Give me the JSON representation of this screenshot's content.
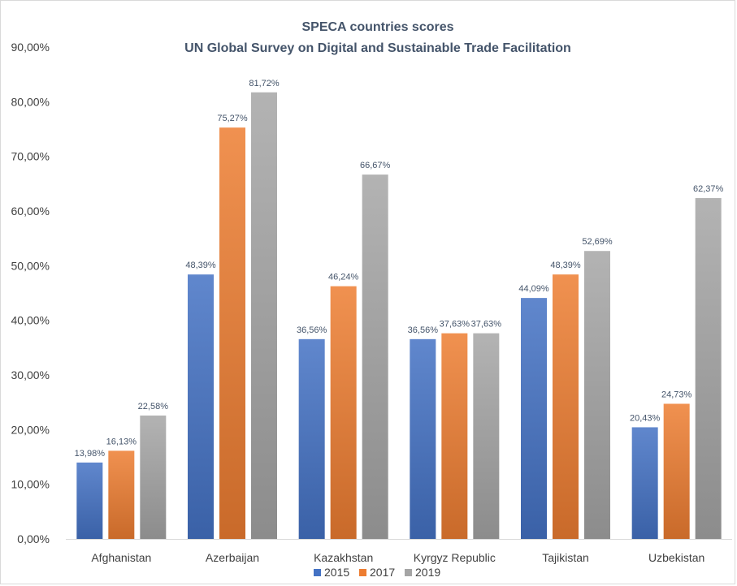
{
  "chart_data": {
    "type": "bar",
    "title": "SPECA countries scores",
    "subtitle": "UN Global Survey on Digital and Sustainable Trade Facilitation",
    "xlabel": "",
    "ylabel": "",
    "ylim": [
      0,
      90
    ],
    "yticks": [
      "0,00%",
      "10,00%",
      "20,00%",
      "30,00%",
      "40,00%",
      "50,00%",
      "60,00%",
      "70,00%",
      "80,00%",
      "90,00%"
    ],
    "grid": false,
    "legend_position": "bottom",
    "categories": [
      "Afghanistan",
      "Azerbaijan",
      "Kazakhstan",
      "Kyrgyz Republic",
      "Tajikistan",
      "Uzbekistan"
    ],
    "series": [
      {
        "name": "2015",
        "color": "#4472c4",
        "values": [
          13.98,
          48.39,
          36.56,
          36.56,
          44.09,
          20.43
        ],
        "labels": [
          "13,98%",
          "48,39%",
          "36,56%",
          "36,56%",
          "44,09%",
          "20,43%"
        ]
      },
      {
        "name": "2017",
        "color": "#ed7d31",
        "values": [
          16.13,
          75.27,
          46.24,
          37.63,
          48.39,
          24.73
        ],
        "labels": [
          "16,13%",
          "75,27%",
          "46,24%",
          "37,63%",
          "48,39%",
          "24,73%"
        ]
      },
      {
        "name": "2019",
        "color": "#a5a5a5",
        "values": [
          22.58,
          81.72,
          66.67,
          37.63,
          52.69,
          62.37
        ],
        "labels": [
          "22,58%",
          "81,72%",
          "66,67%",
          "37,63%",
          "52,69%",
          "62,37%"
        ]
      }
    ]
  }
}
